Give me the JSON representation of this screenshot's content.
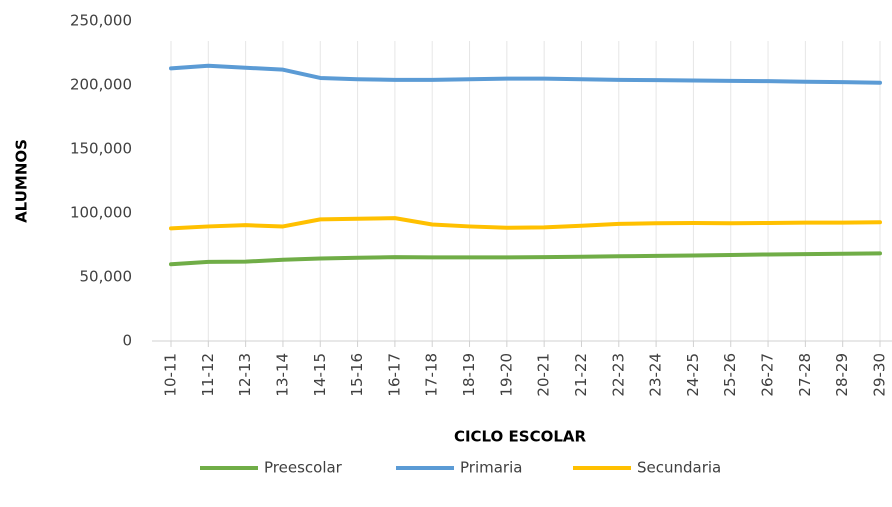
{
  "chart_data": {
    "type": "line",
    "x_label": "CICLO ESCOLAR",
    "y_label": "ALUMNOS",
    "categories": [
      "10-11",
      "11-12",
      "12-13",
      "13-14",
      "14-15",
      "15-16",
      "16-17",
      "17-18",
      "18-19",
      "19-20",
      "20-21",
      "21-22",
      "22-23",
      "23-24",
      "24-25",
      "25-26",
      "26-27",
      "27-28",
      "28-29",
      "29-30"
    ],
    "series": [
      {
        "name": "Preescolar",
        "color": "#70ad47",
        "values": [
          60000,
          61800,
          62000,
          63500,
          64500,
          65000,
          65500,
          65300,
          65300,
          65300,
          65500,
          65800,
          66200,
          66500,
          66800,
          67200,
          67600,
          67900,
          68200,
          68500
        ]
      },
      {
        "name": "Primaria",
        "color": "#5b9bd5",
        "values": [
          213000,
          215000,
          213500,
          212000,
          205500,
          204500,
          204000,
          204000,
          204500,
          205000,
          205000,
          204500,
          204000,
          203800,
          203500,
          203200,
          203000,
          202500,
          202200,
          201800
        ]
      },
      {
        "name": "Secundaria",
        "color": "#ffc000",
        "values": [
          88000,
          89500,
          90500,
          89500,
          95000,
          95500,
          96000,
          91000,
          89500,
          88500,
          88800,
          90000,
          91500,
          92000,
          92200,
          92000,
          92200,
          92500,
          92500,
          92800
        ]
      }
    ],
    "ylim": [
      0,
      250000
    ],
    "yticks": [
      0,
      {
        "value": 50000,
        "label": "50,000"
      },
      {
        "value": 100000,
        "label": "100,000"
      },
      {
        "value": 150000,
        "label": "150,000"
      },
      {
        "value": 200000,
        "label": "200,000"
      },
      {
        "value": 250000,
        "label": "250,000"
      }
    ],
    "grid": true,
    "legend": "bottom"
  }
}
